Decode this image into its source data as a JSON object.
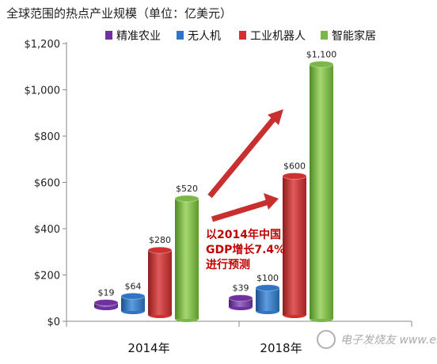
{
  "chart_data": {
    "type": "bar",
    "title": "全球范围的热点产业规模（单位：亿美元）",
    "categories": [
      "2014年",
      "2018年"
    ],
    "series": [
      {
        "name": "精准农业",
        "values": [
          19,
          39
        ],
        "labels": [
          "$19",
          "$39"
        ],
        "color": "#7030a0"
      },
      {
        "name": "无人机",
        "values": [
          64,
          100
        ],
        "labels": [
          "$64",
          "$100"
        ],
        "color": "#2e75c8"
      },
      {
        "name": "工业机器人",
        "values": [
          280,
          600
        ],
        "labels": [
          "$280",
          "$600"
        ],
        "color": "#d03030"
      },
      {
        "name": "智能家居",
        "values": [
          520,
          1100
        ],
        "labels": [
          "$520",
          "$1,100"
        ],
        "color": "#7ab648"
      }
    ],
    "ylim": [
      0,
      1200
    ],
    "yticks": [
      0,
      200,
      400,
      600,
      800,
      1000,
      1200
    ],
    "ytick_labels": [
      "$0",
      "$200",
      "$400",
      "$600",
      "$800",
      "$1,000",
      "$1,200"
    ],
    "legend": "top",
    "grid": false,
    "annotation": [
      "以2014年中国",
      "GDP增长7.4%",
      "进行预测"
    ],
    "annotation_color": "#c00000"
  },
  "watermark": "电子发烧友 www.elecfans.com"
}
